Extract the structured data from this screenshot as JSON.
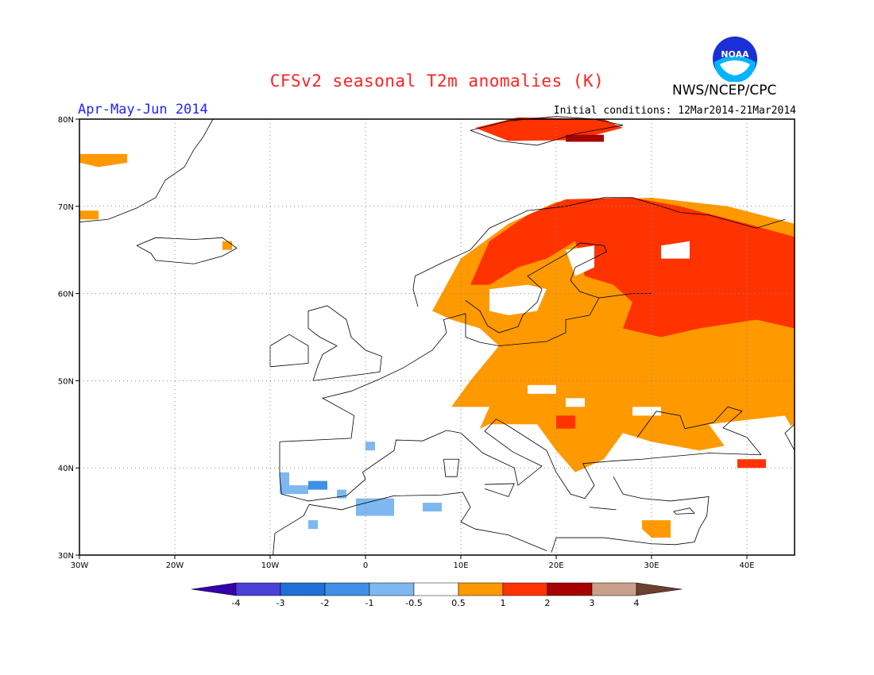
{
  "header": {
    "title": "CFSv2 seasonal T2m anomalies (K)",
    "season": "Apr-May-Jun 2014",
    "initial_conditions": "Initial conditions: 12Mar2014-21Mar2014",
    "agency": "NWS/NCEP/CPC",
    "logo_text": "NOAA"
  },
  "axes": {
    "lon_labels": [
      "30W",
      "20W",
      "10W",
      "0",
      "10E",
      "20E",
      "30E",
      "40E"
    ],
    "lat_labels": [
      "30N",
      "40N",
      "50N",
      "60N",
      "70N",
      "80N"
    ]
  },
  "colorbar": {
    "labels": [
      "-4",
      "-3",
      "-2",
      "-1",
      "-0.5",
      "0.5",
      "1",
      "2",
      "3",
      "4"
    ],
    "colors": [
      "#3300aa",
      "#4a3fd6",
      "#1f6fd6",
      "#3f8fe6",
      "#7fb8f0",
      "#ffffff",
      "#ff9900",
      "#ff3300",
      "#a60000",
      "#c8a08c",
      "#6b4030"
    ]
  },
  "colors": {
    "orange": "#ff9900",
    "red": "#ff3300",
    "darkred": "#a60000",
    "lightblue": "#7fb8f0",
    "blue": "#3f8fe6"
  }
}
